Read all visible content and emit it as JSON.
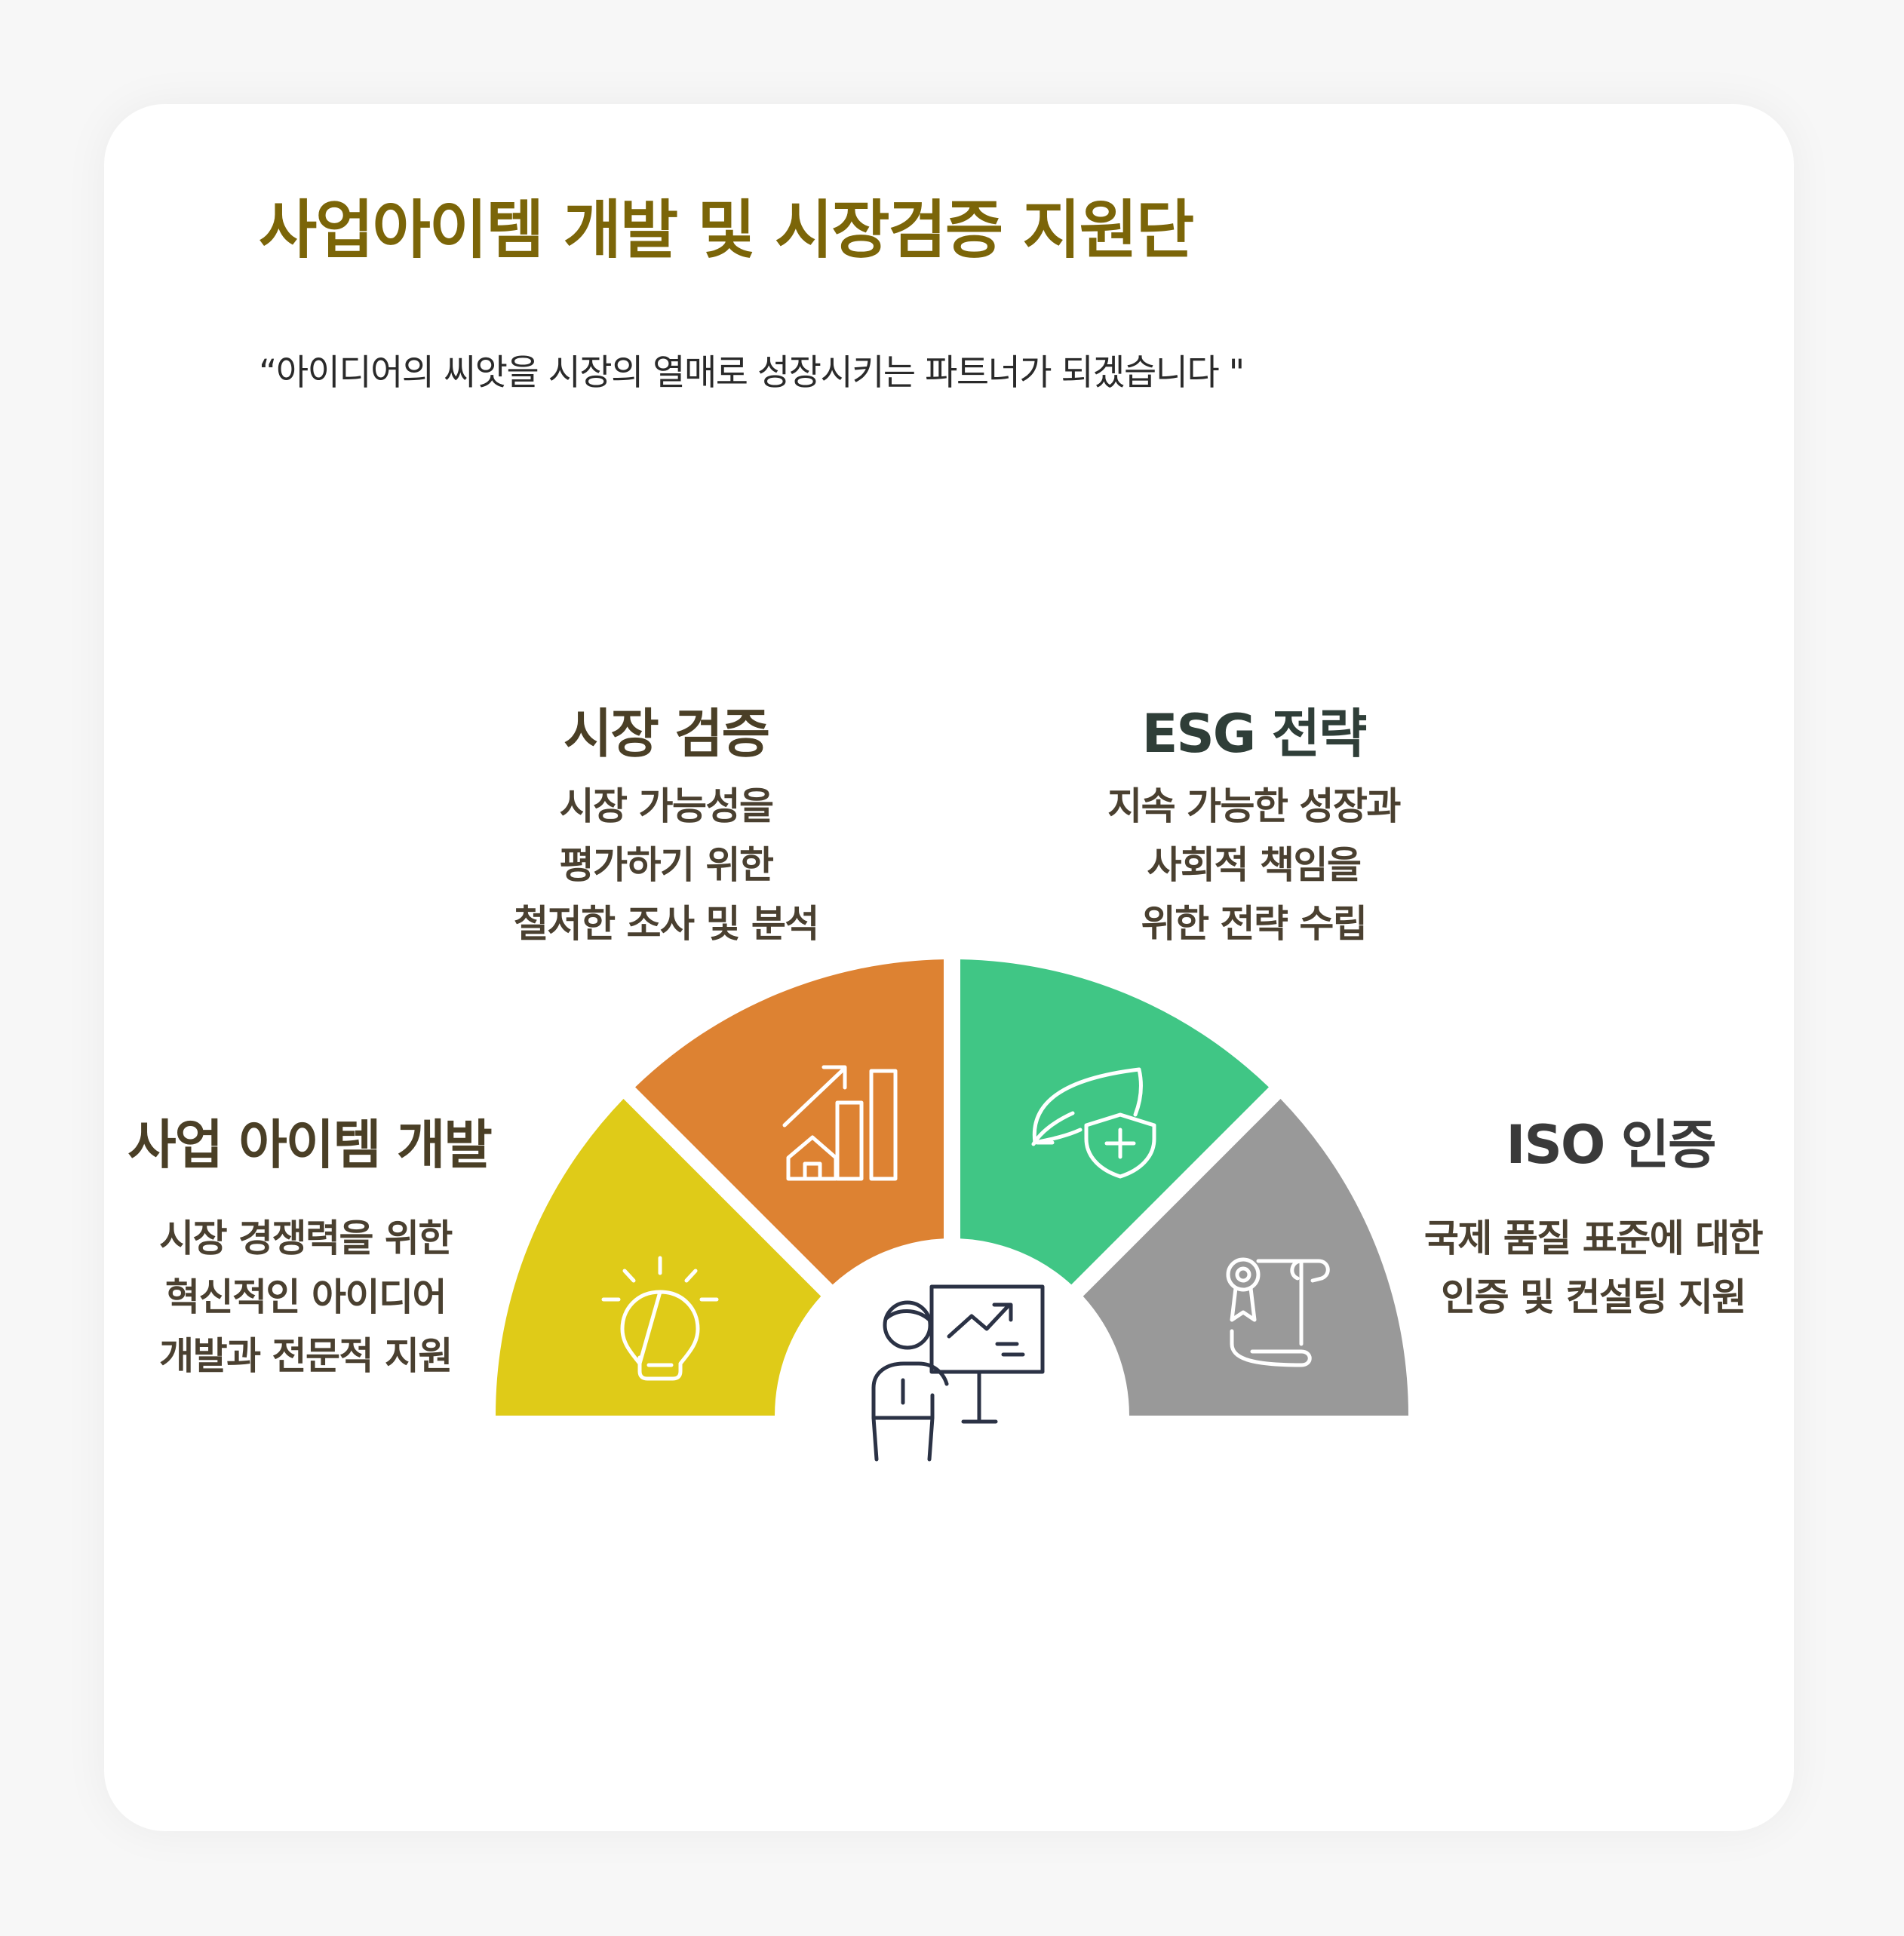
{
  "header": {
    "title": "사업아이템 개발 및 시장검증 지원단",
    "subtitle": "“아이디어의 씨앗을 시장의 열매로 성장시키는 파트너가 되겠습니다 \""
  },
  "segments": [
    {
      "id": "item-dev",
      "title": "사업 아이템 개발",
      "desc": [
        "시장 경쟁력을 위한",
        "혁신적인 아이디어",
        "개발과 전문적 지원"
      ],
      "color": "#dfcb18",
      "title_color": "#4a3f26",
      "icon": "lightbulb-icon"
    },
    {
      "id": "market-validation",
      "title": "시장 검증",
      "desc": [
        "시장 가능성을",
        "평가하기 위한",
        "철저한 조사 및 분석"
      ],
      "color": "#dd8232",
      "title_color": "#4a3f26",
      "icon": "growth-chart-icon"
    },
    {
      "id": "esg",
      "title": "ESG 전략",
      "desc": [
        "지속 가능한 성장과",
        "사회적 책임을",
        "위한 전략 수립"
      ],
      "color": "#40c685",
      "title_color": "#2f3e38",
      "icon": "leaf-shield-icon"
    },
    {
      "id": "iso",
      "title": "ISO 인증",
      "desc": [
        "국제 품질 표준에 대한",
        "인증 및 컨설팅 지원"
      ],
      "color": "#999999",
      "title_color": "#3a3a3a",
      "icon": "certificate-scroll-icon"
    }
  ],
  "center_icon": "presenter-icon"
}
